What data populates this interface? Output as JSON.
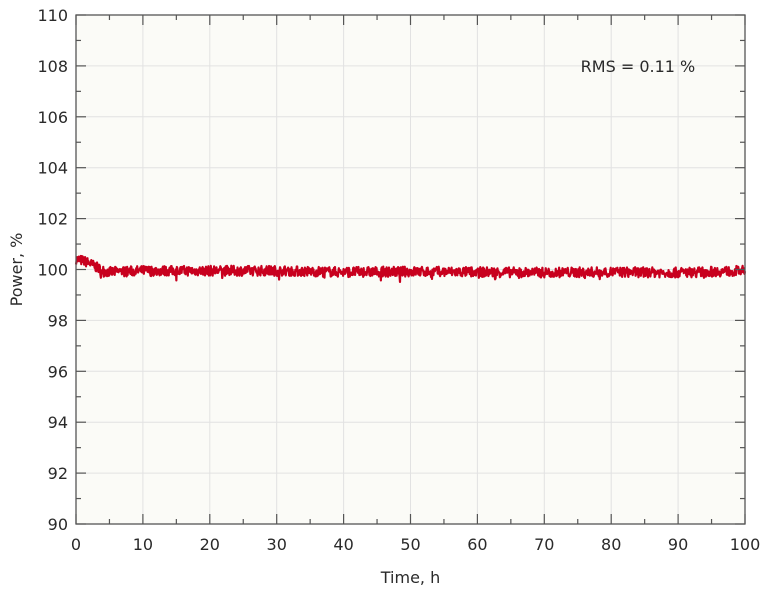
{
  "chart_data": {
    "type": "line",
    "title": "",
    "xlabel": "Time, h",
    "ylabel": "Power, %",
    "xlim": [
      0,
      100
    ],
    "ylim": [
      90,
      110
    ],
    "x_ticks": [
      0,
      10,
      20,
      30,
      40,
      50,
      60,
      70,
      80,
      90,
      100
    ],
    "y_ticks": [
      90,
      92,
      94,
      96,
      98,
      100,
      102,
      104,
      106,
      108,
      110
    ],
    "grid": true,
    "legend": null,
    "annotations": [
      {
        "text": "RMS = 0.11 %",
        "x": 84,
        "y": 108
      }
    ],
    "series": [
      {
        "name": "Power",
        "color": "#c8001e",
        "description": "Noisy signal near 100%; starts ~100.4 and settles to ~99.9 by ~4 h, band roughly 99.6-100.3",
        "x": [
          0,
          1,
          2,
          3,
          4,
          5,
          10,
          20,
          30,
          40,
          50,
          60,
          70,
          80,
          90,
          100
        ],
        "values": [
          100.4,
          100.35,
          100.25,
          100.1,
          99.95,
          99.9,
          99.95,
          99.95,
          99.95,
          99.9,
          99.92,
          99.9,
          99.88,
          99.9,
          99.88,
          99.95
        ],
        "noise_amplitude": 0.2
      }
    ]
  },
  "colors": {
    "plot_background": "#fbfbf7",
    "grid": "#e2e2e2",
    "axis": "#555555",
    "series": "#c8001e"
  }
}
